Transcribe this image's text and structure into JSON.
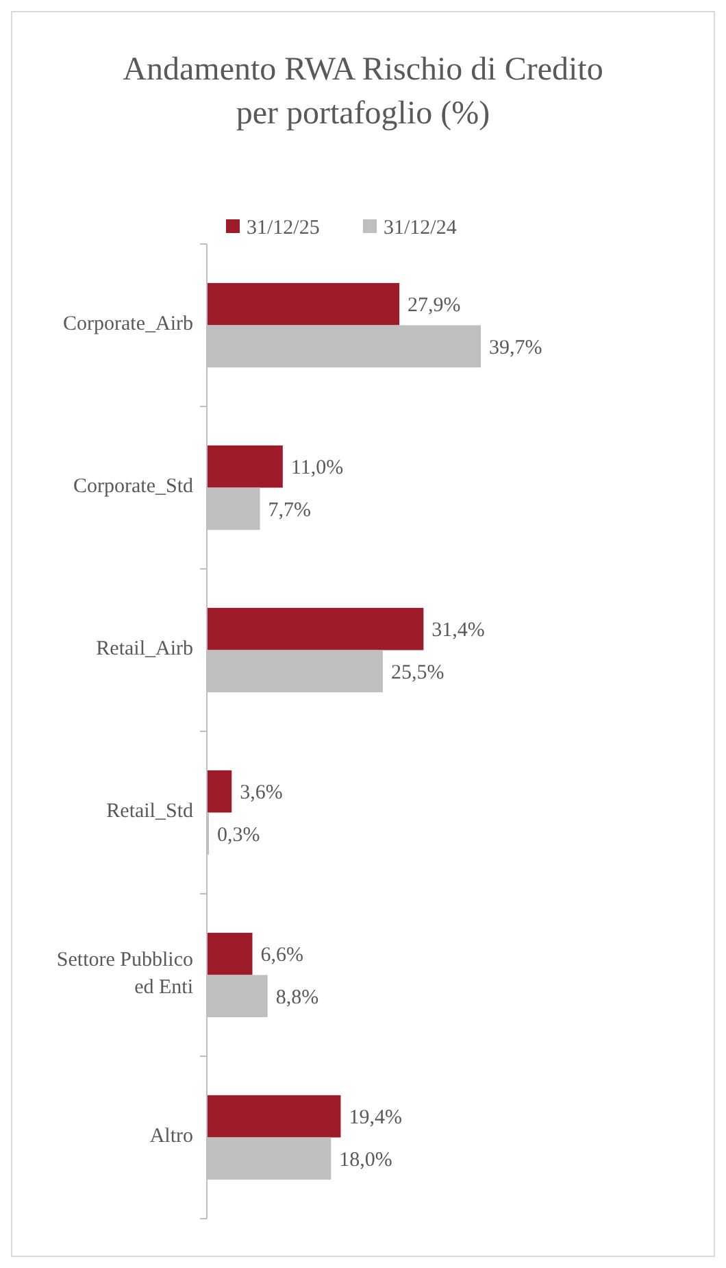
{
  "chart_data": {
    "type": "bar",
    "orientation": "horizontal",
    "title": "Andamento RWA Rischio di Credito per portafoglio (%)",
    "categories": [
      "Corporate_Airb",
      "Corporate_Std",
      "Retail_Airb",
      "Retail_Std",
      "Settore Pubblico ed Enti",
      "Altro"
    ],
    "series": [
      {
        "name": "31/12/25",
        "color": "#9e1b2a",
        "values": [
          27.9,
          11.0,
          31.4,
          3.6,
          6.6,
          19.4
        ],
        "value_labels": [
          "27,9%",
          "11,0%",
          "31,4%",
          "3,6%",
          "6,6%",
          "19,4%"
        ]
      },
      {
        "name": "31/12/24",
        "color": "#bfbfbf",
        "values": [
          39.7,
          7.7,
          25.5,
          0.3,
          8.8,
          18.0
        ],
        "value_labels": [
          "39,7%",
          "7,7%",
          "25,5%",
          "0,3%",
          "8,8%",
          "18,0%"
        ]
      }
    ],
    "tick_labels": "y",
    "legend": "top"
  }
}
